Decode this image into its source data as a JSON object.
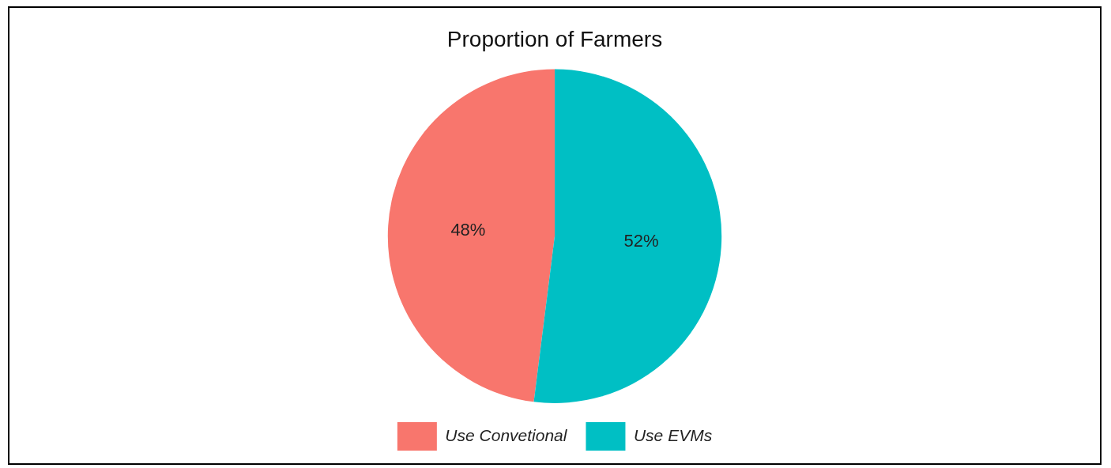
{
  "chart_data": {
    "type": "pie",
    "title": "Proportion of Farmers",
    "categories": [
      "Use Convetional",
      "Use EVMs"
    ],
    "values": [
      48,
      52
    ],
    "colors": [
      "#f8766d",
      "#00bfc4"
    ],
    "value_labels": [
      "48%",
      "52%"
    ],
    "legend": "bottom"
  }
}
